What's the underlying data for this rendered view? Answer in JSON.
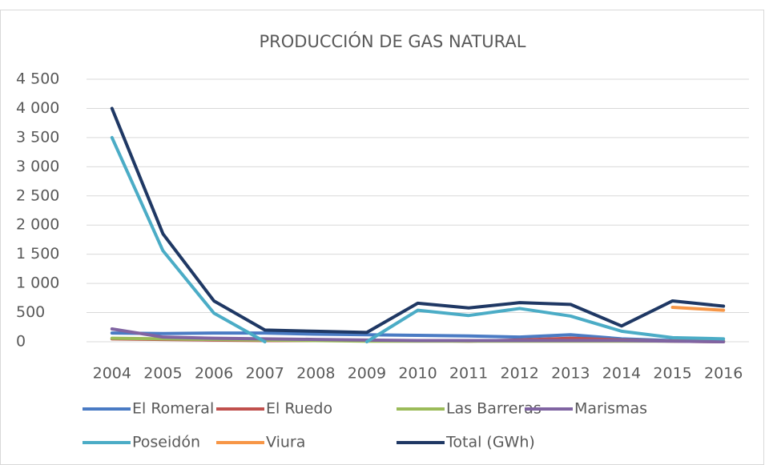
{
  "chart_data": {
    "type": "line",
    "title": "PRODUCCIÓN DE GAS NATURAL",
    "categories": [
      "2004",
      "2005",
      "2006",
      "2007",
      "2008",
      "2009",
      "2010",
      "2011",
      "2012",
      "2013",
      "2014",
      "2015",
      "2016"
    ],
    "series": [
      {
        "name": "El Romeral",
        "color": "#4a7bc4",
        "values": [
          150,
          140,
          150,
          150,
          130,
          120,
          110,
          100,
          80,
          120,
          50,
          20,
          10
        ]
      },
      {
        "name": "El Ruedo",
        "color": "#c0504d",
        "values": [
          50,
          40,
          30,
          20,
          20,
          20,
          20,
          10,
          30,
          60,
          30,
          10,
          0
        ]
      },
      {
        "name": "Las Barreras",
        "color": "#9bbb59",
        "values": [
          60,
          50,
          40,
          30,
          20,
          10,
          10,
          10,
          10,
          10,
          10,
          10,
          10
        ]
      },
      {
        "name": "Marismas",
        "color": "#8064a2",
        "values": [
          220,
          80,
          60,
          50,
          40,
          30,
          20,
          20,
          20,
          20,
          20,
          10,
          0
        ]
      },
      {
        "name": "Poseidón",
        "color": "#4bacc6",
        "values": [
          3500,
          1560,
          490,
          0,
          null,
          0,
          540,
          450,
          570,
          440,
          180,
          70,
          50
        ]
      },
      {
        "name": "Viura",
        "color": "#f79646",
        "values": [
          null,
          null,
          null,
          null,
          null,
          null,
          null,
          null,
          null,
          null,
          null,
          590,
          540
        ]
      },
      {
        "name": "Total (GWh)",
        "color": "#1f3864",
        "values": [
          4000,
          1850,
          700,
          200,
          180,
          160,
          660,
          580,
          670,
          640,
          270,
          700,
          610
        ]
      }
    ],
    "ylim": [
      0,
      4500
    ],
    "yticks": [
      0,
      500,
      {
        "value": 1000,
        "label": "1 000"
      },
      {
        "value": 1500,
        "label": "1 500"
      },
      {
        "value": 2000,
        "label": "2 000"
      },
      {
        "value": 2500,
        "label": "2 500"
      },
      {
        "value": 3000,
        "label": "3 000"
      },
      {
        "value": 3500,
        "label": "3 500"
      },
      {
        "value": 4000,
        "label": "4 000"
      },
      {
        "value": 4500,
        "label": "4 500"
      }
    ],
    "grid": true
  }
}
